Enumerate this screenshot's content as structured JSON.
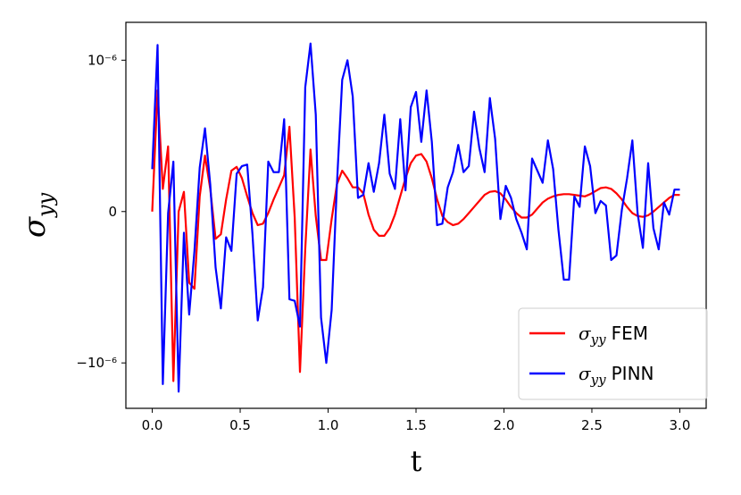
{
  "chart_data": {
    "type": "line",
    "title": "",
    "xlabel": "t",
    "ylabel": "σ_yy",
    "xlim": [
      -0.15,
      3.15
    ],
    "ylim": [
      -1.3e-06,
      1.25e-06
    ],
    "xticks": [
      {
        "value": 0.0,
        "label": "0.0"
      },
      {
        "value": 0.5,
        "label": "0.5"
      },
      {
        "value": 1.0,
        "label": "1.0"
      },
      {
        "value": 1.5,
        "label": "1.5"
      },
      {
        "value": 2.0,
        "label": "2.0"
      },
      {
        "value": 2.5,
        "label": "2.5"
      },
      {
        "value": 3.0,
        "label": "3.0"
      }
    ],
    "yticks": [
      {
        "value": 1e-06,
        "label": "10⁻⁶"
      },
      {
        "value": 0,
        "label": "0"
      },
      {
        "value": -1e-06,
        "label": "−10⁻⁶"
      }
    ],
    "grid": false,
    "legend_position": "lower-right",
    "series": [
      {
        "name": "σyy FEM",
        "color": "#ff0000",
        "x": [
          0.0,
          0.03,
          0.06,
          0.09,
          0.12,
          0.15,
          0.18,
          0.21,
          0.24,
          0.27,
          0.3,
          0.33,
          0.36,
          0.39,
          0.42,
          0.45,
          0.48,
          0.51,
          0.54,
          0.57,
          0.6,
          0.63,
          0.66,
          0.69,
          0.72,
          0.75,
          0.78,
          0.81,
          0.84,
          0.87,
          0.9,
          0.93,
          0.96,
          0.99,
          1.02,
          1.05,
          1.08,
          1.11,
          1.14,
          1.17,
          1.2,
          1.23,
          1.26,
          1.29,
          1.32,
          1.35,
          1.38,
          1.41,
          1.44,
          1.47,
          1.5,
          1.53,
          1.56,
          1.59,
          1.62,
          1.65,
          1.68,
          1.71,
          1.74,
          1.77,
          1.8,
          1.83,
          1.86,
          1.89,
          1.92,
          1.95,
          1.98,
          2.01,
          2.04,
          2.07,
          2.1,
          2.13,
          2.16,
          2.19,
          2.22,
          2.25,
          2.28,
          2.31,
          2.34,
          2.37,
          2.4,
          2.43,
          2.46,
          2.49,
          2.52,
          2.55,
          2.58,
          2.61,
          2.64,
          2.67,
          2.7,
          2.73,
          2.76,
          2.79,
          2.82,
          2.85,
          2.88,
          2.91,
          2.94,
          2.97,
          3.0
        ],
        "y": [
          0,
          8e-07,
          1.5e-07,
          4.3e-07,
          -1.12e-06,
          0,
          1.3e-07,
          -4.7e-07,
          -5.1e-07,
          1e-07,
          3.7e-07,
          1.5e-07,
          -1.8e-07,
          -1.5e-07,
          8e-08,
          2.7e-07,
          2.95e-07,
          2.2e-07,
          1e-07,
          -1e-08,
          -9e-08,
          -8e-08,
          -1e-08,
          8e-08,
          1.6e-07,
          2.4e-07,
          5.6e-07,
          -4e-08,
          -1.06e-06,
          -2.5e-07,
          4.1e-07,
          -3e-08,
          -3.2e-07,
          -3.2e-07,
          -5e-08,
          1.8e-07,
          2.7e-07,
          2.2e-07,
          1.6e-07,
          1.6e-07,
          1.2e-07,
          -2e-08,
          -1.2e-07,
          -1.6e-07,
          -1.6e-07,
          -1.1e-07,
          -2e-08,
          1e-07,
          2.2e-07,
          3.2e-07,
          3.7e-07,
          3.8e-07,
          3.3e-07,
          2.2e-07,
          8e-08,
          -3e-08,
          -7e-08,
          -9e-08,
          -8e-08,
          -5e-08,
          -1e-08,
          3e-08,
          7e-08,
          1.1e-07,
          1.3e-07,
          1.35e-07,
          1.2e-07,
          8e-08,
          3e-08,
          -1e-08,
          -4e-08,
          -4e-08,
          -2e-08,
          2e-08,
          6e-08,
          8.5e-08,
          1e-07,
          1.1e-07,
          1.15e-07,
          1.15e-07,
          1.1e-07,
          1.05e-07,
          1e-07,
          1.15e-07,
          1.35e-07,
          1.55e-07,
          1.6e-07,
          1.5e-07,
          1.2e-07,
          8e-08,
          3e-08,
          -1e-08,
          -3e-08,
          -3.5e-08,
          -2.5e-08,
          0,
          3e-08,
          6e-08,
          9e-08,
          1.1e-07,
          1.1e-07
        ]
      },
      {
        "name": "σyy PINN",
        "color": "#0000ff",
        "x": [
          0.0,
          0.03,
          0.06,
          0.09,
          0.12,
          0.15,
          0.18,
          0.21,
          0.24,
          0.27,
          0.3,
          0.33,
          0.36,
          0.39,
          0.42,
          0.45,
          0.48,
          0.51,
          0.54,
          0.57,
          0.6,
          0.63,
          0.66,
          0.69,
          0.72,
          0.75,
          0.78,
          0.81,
          0.84,
          0.87,
          0.9,
          0.93,
          0.96,
          0.99,
          1.02,
          1.05,
          1.08,
          1.11,
          1.14,
          1.17,
          1.2,
          1.23,
          1.26,
          1.29,
          1.32,
          1.35,
          1.38,
          1.41,
          1.44,
          1.47,
          1.5,
          1.53,
          1.56,
          1.59,
          1.62,
          1.65,
          1.68,
          1.71,
          1.74,
          1.77,
          1.8,
          1.83,
          1.86,
          1.89,
          1.92,
          1.95,
          1.98,
          2.01,
          2.04,
          2.07,
          2.1,
          2.13,
          2.16,
          2.19,
          2.22,
          2.25,
          2.28,
          2.31,
          2.34,
          2.37,
          2.4,
          2.43,
          2.46,
          2.49,
          2.52,
          2.55,
          2.58,
          2.61,
          2.64,
          2.67,
          2.7,
          2.73,
          2.76,
          2.79,
          2.82,
          2.85,
          2.88,
          2.91,
          2.94,
          2.97,
          3.0
        ],
        "y": [
          2.8e-07,
          1.1e-06,
          -1.14e-06,
          -1e-08,
          3.3e-07,
          -1.19e-06,
          -1.4e-07,
          -6.8e-07,
          -2.6e-07,
          2.9e-07,
          5.5e-07,
          1.8e-07,
          -3.7e-07,
          -6.4e-07,
          -1.7e-07,
          -2.6e-07,
          2.5e-07,
          3e-07,
          3.1e-07,
          -1.5e-07,
          -7.2e-07,
          -5e-07,
          3.3e-07,
          2.6e-07,
          2.6e-07,
          6.1e-07,
          -5.8e-07,
          -5.9e-07,
          -7.6e-07,
          8.2e-07,
          1.11e-06,
          6.4e-07,
          -7e-07,
          -1e-06,
          -6.5e-07,
          1.8e-07,
          8.7e-07,
          1e-06,
          7.6e-07,
          9e-08,
          1.1e-07,
          3.2e-07,
          1.3e-07,
          3.2e-07,
          6.4e-07,
          2.5e-07,
          1.5e-07,
          6.1e-07,
          1.4e-07,
          6.9e-07,
          7.9e-07,
          4.6e-07,
          8e-07,
          4.6e-07,
          -9e-08,
          -8e-08,
          1.6e-07,
          2.6e-07,
          4.4e-07,
          2.6e-07,
          3e-07,
          6.6e-07,
          4.2e-07,
          2.6e-07,
          7.5e-07,
          4.8e-07,
          -5e-08,
          1.7e-07,
          9e-08,
          -5e-08,
          -1.4e-07,
          -2.5e-07,
          3.5e-07,
          2.7e-07,
          1.9e-07,
          4.7e-07,
          2.8e-07,
          -1.2e-07,
          -4.5e-07,
          -4.5e-07,
          1e-07,
          3.1e-08,
          4.3e-07,
          3e-07,
          -1e-08,
          7e-08,
          4e-08,
          -3.2e-07,
          -2.9e-07,
          1e-08,
          2.2e-07,
          4.7e-07,
          -1.2e-08,
          -2.4e-07,
          3.2e-07,
          -1.1e-07,
          -2.5e-07,
          6e-08,
          -2e-08,
          1.45e-07,
          1.45e-07
        ]
      }
    ]
  }
}
